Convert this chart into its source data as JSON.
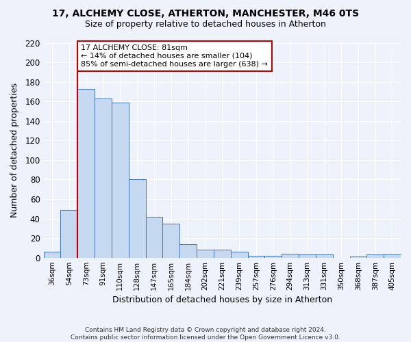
{
  "title": "17, ALCHEMY CLOSE, ATHERTON, MANCHESTER, M46 0TS",
  "subtitle": "Size of property relative to detached houses in Atherton",
  "xlabel": "Distribution of detached houses by size in Atherton",
  "ylabel": "Number of detached properties",
  "categories": [
    "36sqm",
    "54sqm",
    "73sqm",
    "91sqm",
    "110sqm",
    "128sqm",
    "147sqm",
    "165sqm",
    "184sqm",
    "202sqm",
    "221sqm",
    "239sqm",
    "257sqm",
    "276sqm",
    "294sqm",
    "313sqm",
    "331sqm",
    "350sqm",
    "368sqm",
    "387sqm",
    "405sqm"
  ],
  "values": [
    6,
    49,
    173,
    163,
    159,
    80,
    42,
    35,
    14,
    8,
    8,
    6,
    2,
    2,
    4,
    3,
    3,
    0,
    1,
    3,
    3
  ],
  "bar_color": "#c5d9f0",
  "bar_edge_color": "#4472c4",
  "vline_x": 2,
  "vline_color": "#c00000",
  "annotation_line1": "17 ALCHEMY CLOSE: 81sqm",
  "annotation_line2": "← 14% of detached houses are smaller (104)",
  "annotation_line3": "85% of semi-detached houses are larger (638) →",
  "annotation_box_color": "white",
  "annotation_box_edge_color": "#c00000",
  "ylim": [
    0,
    220
  ],
  "yticks": [
    0,
    20,
    40,
    60,
    80,
    100,
    120,
    140,
    160,
    180,
    200,
    220
  ],
  "footer": "Contains HM Land Registry data © Crown copyright and database right 2024.\nContains public sector information licensed under the Open Government Licence v3.0.",
  "bg_color": "#eef2fb",
  "grid_color": "#ffffff"
}
